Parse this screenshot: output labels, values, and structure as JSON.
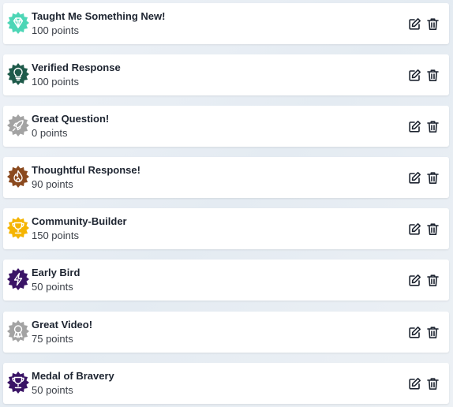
{
  "badges": [
    {
      "name": "Taught Me Something New!",
      "points": "100 points",
      "icon": "diamond-icon",
      "color": "#4dd6b6"
    },
    {
      "name": "Verified Response",
      "points": "100 points",
      "icon": "lightbulb-icon",
      "color": "#1e5a4a"
    },
    {
      "name": "Great Question!",
      "points": "0 points",
      "icon": "rocket-icon",
      "color": "#a3a3a3"
    },
    {
      "name": "Thoughtful Response!",
      "points": "90 points",
      "icon": "flame-icon",
      "color": "#8b4a1f"
    },
    {
      "name": "Community-Builder",
      "points": "150 points",
      "icon": "trophy-icon",
      "color": "#f5b400"
    },
    {
      "name": "Early Bird",
      "points": "50 points",
      "icon": "lightning-icon",
      "color": "#3a1466"
    },
    {
      "name": "Great Video!",
      "points": "75 points",
      "icon": "ribbon-icon",
      "color": "#a3a3a3"
    },
    {
      "name": "Medal of Bravery",
      "points": "50 points",
      "icon": "trophy-icon",
      "color": "#3a1466"
    }
  ],
  "actions": {
    "edit_icon": "edit-icon",
    "delete_icon": "trash-icon"
  }
}
